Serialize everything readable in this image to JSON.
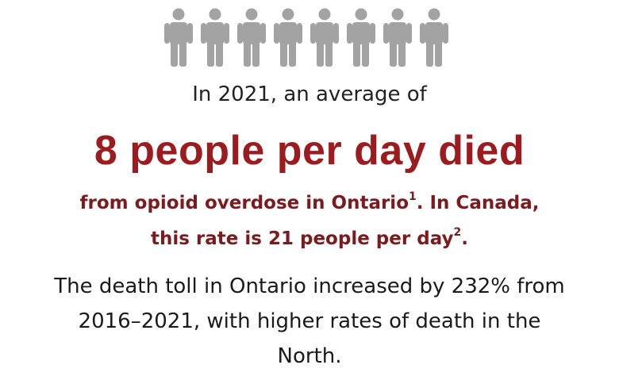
{
  "colors": {
    "icon": "#a3a3a3",
    "accent": "#9b1b1e",
    "subtext": "#7c1a1d",
    "text": "#1a1a1a"
  },
  "icons": [
    "person-icon",
    "person-icon",
    "person-icon",
    "person-icon",
    "person-icon",
    "person-icon",
    "person-icon",
    "person-icon"
  ],
  "intro": "In 2021, an average of",
  "headline": "8 people per day died",
  "sub": {
    "line1_text": "from opioid overdose in Ontario",
    "line1_ref": "1",
    "line1_after": ". In Canada,",
    "line2_text": "this rate is 21 people per day",
    "line2_ref": "2",
    "line2_after": "."
  },
  "body": {
    "line1": "The death toll in Ontario increased by 232% from",
    "line2": "2016–2021, with higher rates of death in the",
    "line3": "North."
  }
}
